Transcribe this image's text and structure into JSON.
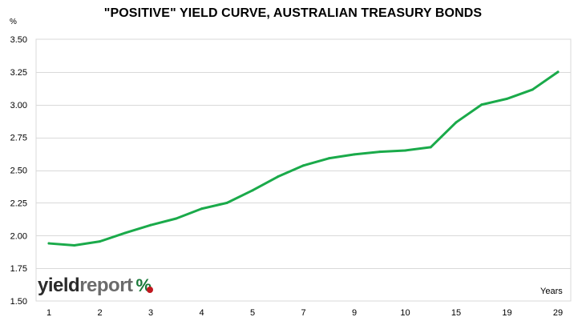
{
  "chart_data": {
    "type": "line",
    "title": "\"POSITIVE\" YIELD CURVE,  AUSTRALIAN TREASURY BONDS",
    "y_unit_label": "%",
    "x_unit_label": "Years",
    "ylim": [
      1.5,
      3.5
    ],
    "y_ticks": [
      "1.50",
      "1.75",
      "2.00",
      "2.25",
      "2.50",
      "2.75",
      "3.00",
      "3.25",
      "3.50"
    ],
    "grid": true,
    "x_tick_labels": [
      "1",
      "2",
      "3",
      "4",
      "5",
      "7",
      "9",
      "10",
      "15",
      "19",
      "29"
    ],
    "series": [
      {
        "color": "#1aaa4a",
        "points": [
          {
            "x": "1",
            "y": 1.94
          },
          {
            "x": "",
            "y": 1.925
          },
          {
            "x": "2",
            "y": 1.955
          },
          {
            "x": "",
            "y": 2.02
          },
          {
            "x": "3",
            "y": 2.08
          },
          {
            "x": "",
            "y": 2.13
          },
          {
            "x": "4",
            "y": 2.205
          },
          {
            "x": "",
            "y": 2.25
          },
          {
            "x": "5",
            "y": 2.345
          },
          {
            "x": "",
            "y": 2.45
          },
          {
            "x": "7",
            "y": 2.535
          },
          {
            "x": "",
            "y": 2.59
          },
          {
            "x": "9",
            "y": 2.62
          },
          {
            "x": "",
            "y": 2.64
          },
          {
            "x": "10",
            "y": 2.65
          },
          {
            "x": "",
            "y": 2.675
          },
          {
            "x": "15",
            "y": 2.865
          },
          {
            "x": "",
            "y": 3.0
          },
          {
            "x": "19",
            "y": 3.045
          },
          {
            "x": "",
            "y": 3.115
          },
          {
            "x": "29",
            "y": 3.25
          }
        ]
      }
    ]
  },
  "logo": {
    "yield": "yield",
    "report": "report",
    "pct": "%"
  }
}
